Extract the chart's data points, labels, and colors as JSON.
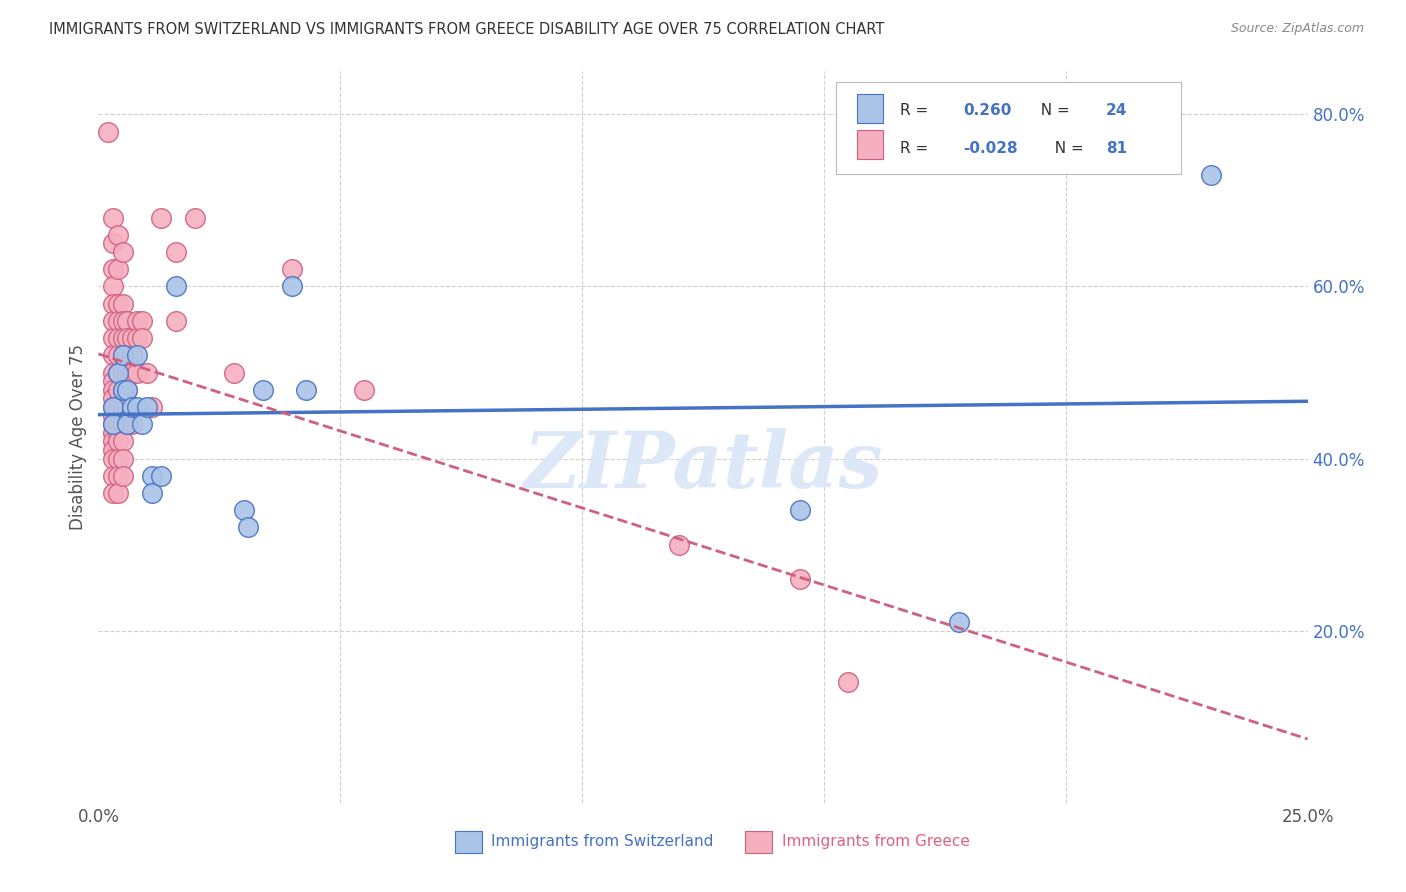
{
  "title": "IMMIGRANTS FROM SWITZERLAND VS IMMIGRANTS FROM GREECE DISABILITY AGE OVER 75 CORRELATION CHART",
  "source": "Source: ZipAtlas.com",
  "ylabel": "Disability Age Over 75",
  "xlim": [
    0.0,
    0.25
  ],
  "ylim": [
    0.0,
    0.85
  ],
  "color_switzerland": "#aac4e8",
  "color_greece": "#f5b0c0",
  "line_color_switzerland": "#4472c4",
  "line_color_greece": "#d06080",
  "background_color": "#ffffff",
  "watermark_text": "ZIPatlas",
  "watermark_color": "#dce8f8",
  "swiss_points": [
    [
      0.003,
      0.46
    ],
    [
      0.003,
      0.44
    ],
    [
      0.004,
      0.5
    ],
    [
      0.005,
      0.52
    ],
    [
      0.005,
      0.48
    ],
    [
      0.006,
      0.48
    ],
    [
      0.006,
      0.44
    ],
    [
      0.007,
      0.46
    ],
    [
      0.008,
      0.52
    ],
    [
      0.008,
      0.46
    ],
    [
      0.009,
      0.44
    ],
    [
      0.01,
      0.46
    ],
    [
      0.011,
      0.38
    ],
    [
      0.011,
      0.36
    ],
    [
      0.013,
      0.38
    ],
    [
      0.016,
      0.6
    ],
    [
      0.034,
      0.48
    ],
    [
      0.04,
      0.6
    ],
    [
      0.043,
      0.48
    ],
    [
      0.03,
      0.34
    ],
    [
      0.031,
      0.32
    ],
    [
      0.145,
      0.34
    ],
    [
      0.178,
      0.21
    ],
    [
      0.23,
      0.73
    ]
  ],
  "greece_points": [
    [
      0.002,
      0.78
    ],
    [
      0.003,
      0.68
    ],
    [
      0.003,
      0.65
    ],
    [
      0.003,
      0.62
    ],
    [
      0.003,
      0.6
    ],
    [
      0.003,
      0.58
    ],
    [
      0.003,
      0.56
    ],
    [
      0.003,
      0.54
    ],
    [
      0.003,
      0.52
    ],
    [
      0.003,
      0.5
    ],
    [
      0.003,
      0.49
    ],
    [
      0.003,
      0.48
    ],
    [
      0.003,
      0.47
    ],
    [
      0.003,
      0.46
    ],
    [
      0.003,
      0.45
    ],
    [
      0.003,
      0.44
    ],
    [
      0.003,
      0.43
    ],
    [
      0.003,
      0.42
    ],
    [
      0.003,
      0.41
    ],
    [
      0.003,
      0.4
    ],
    [
      0.003,
      0.38
    ],
    [
      0.003,
      0.36
    ],
    [
      0.004,
      0.66
    ],
    [
      0.004,
      0.62
    ],
    [
      0.004,
      0.58
    ],
    [
      0.004,
      0.56
    ],
    [
      0.004,
      0.54
    ],
    [
      0.004,
      0.52
    ],
    [
      0.004,
      0.5
    ],
    [
      0.004,
      0.48
    ],
    [
      0.004,
      0.46
    ],
    [
      0.004,
      0.44
    ],
    [
      0.004,
      0.43
    ],
    [
      0.004,
      0.42
    ],
    [
      0.004,
      0.4
    ],
    [
      0.004,
      0.38
    ],
    [
      0.004,
      0.36
    ],
    [
      0.005,
      0.64
    ],
    [
      0.005,
      0.58
    ],
    [
      0.005,
      0.56
    ],
    [
      0.005,
      0.54
    ],
    [
      0.005,
      0.52
    ],
    [
      0.005,
      0.5
    ],
    [
      0.005,
      0.48
    ],
    [
      0.005,
      0.46
    ],
    [
      0.005,
      0.44
    ],
    [
      0.005,
      0.42
    ],
    [
      0.005,
      0.4
    ],
    [
      0.005,
      0.38
    ],
    [
      0.006,
      0.56
    ],
    [
      0.006,
      0.54
    ],
    [
      0.006,
      0.52
    ],
    [
      0.006,
      0.5
    ],
    [
      0.006,
      0.48
    ],
    [
      0.006,
      0.46
    ],
    [
      0.006,
      0.44
    ],
    [
      0.007,
      0.54
    ],
    [
      0.007,
      0.52
    ],
    [
      0.007,
      0.5
    ],
    [
      0.007,
      0.44
    ],
    [
      0.008,
      0.56
    ],
    [
      0.008,
      0.54
    ],
    [
      0.008,
      0.5
    ],
    [
      0.009,
      0.56
    ],
    [
      0.009,
      0.54
    ],
    [
      0.01,
      0.5
    ],
    [
      0.011,
      0.46
    ],
    [
      0.013,
      0.68
    ],
    [
      0.016,
      0.64
    ],
    [
      0.016,
      0.56
    ],
    [
      0.02,
      0.68
    ],
    [
      0.028,
      0.5
    ],
    [
      0.04,
      0.62
    ],
    [
      0.055,
      0.48
    ],
    [
      0.12,
      0.3
    ],
    [
      0.145,
      0.26
    ],
    [
      0.155,
      0.14
    ]
  ]
}
